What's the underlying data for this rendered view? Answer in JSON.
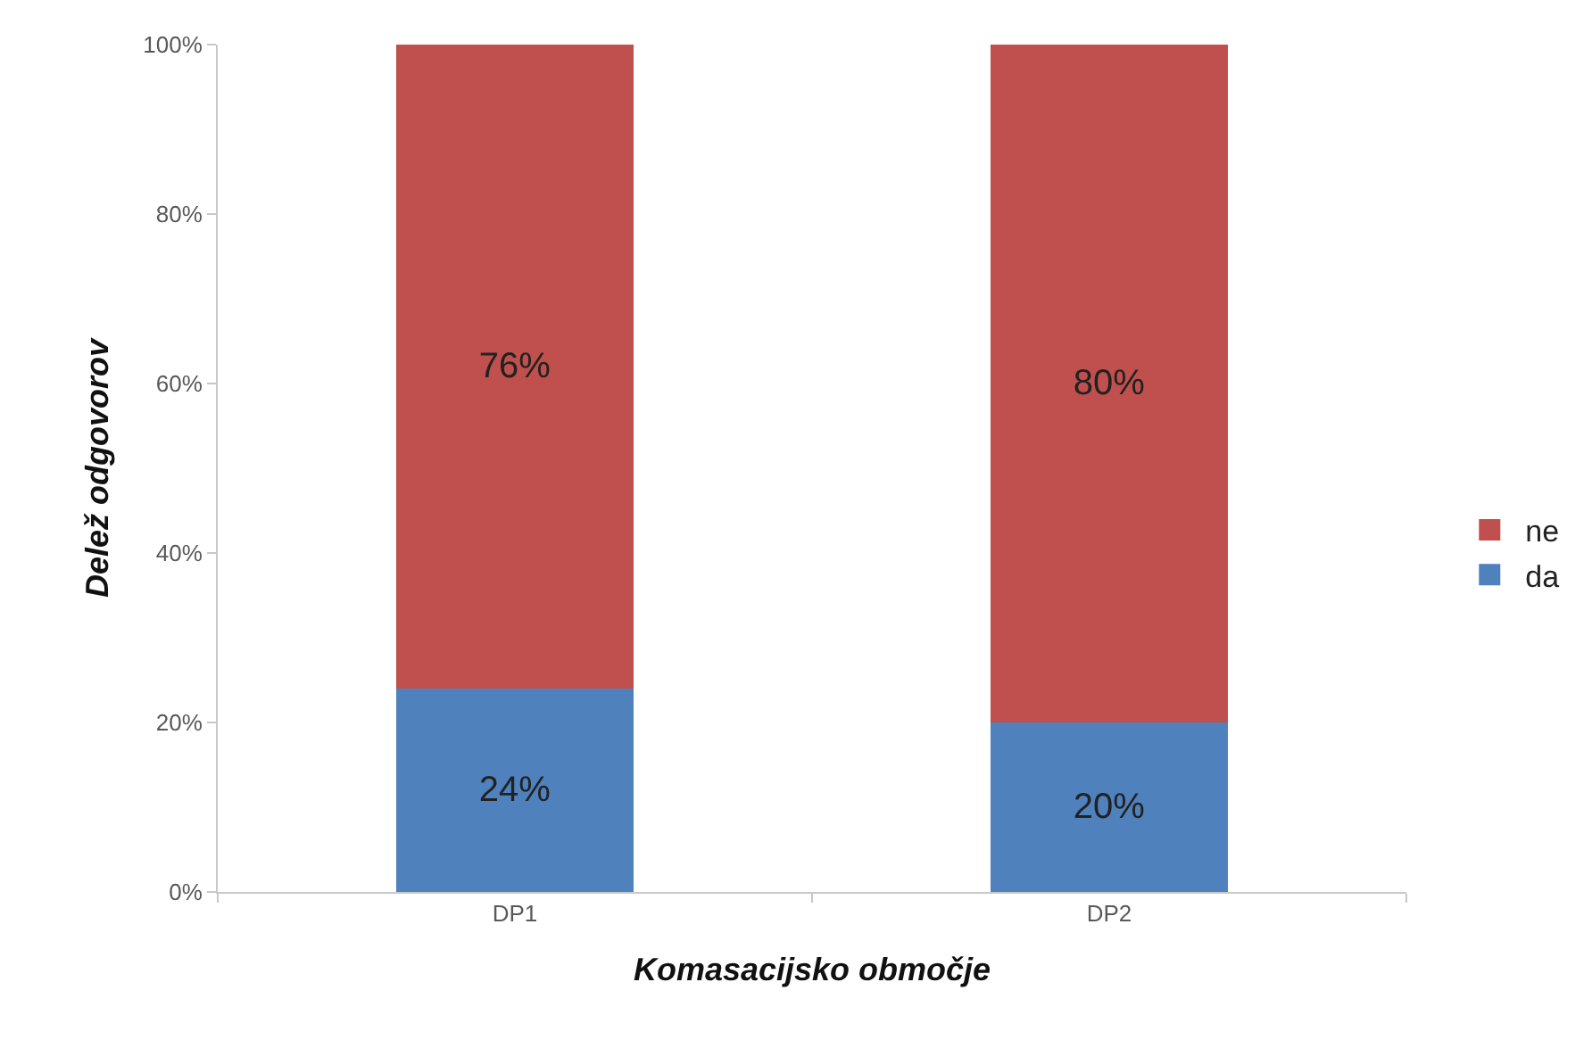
{
  "chart_data": {
    "type": "bar",
    "stacked": true,
    "xlabel": "Komasacijsko območje",
    "ylabel": "Delež odgovorov",
    "categories": [
      "DP1",
      "DP2"
    ],
    "series": [
      {
        "name": "da",
        "color": "#4f81bd",
        "values": [
          24,
          20
        ],
        "value_labels": [
          "24%",
          "20%"
        ]
      },
      {
        "name": "ne",
        "color": "#c0504d",
        "values": [
          76,
          80
        ],
        "value_labels": [
          "76%",
          "80%"
        ]
      }
    ],
    "ylim": [
      0,
      100
    ],
    "yticks": [
      {
        "value": 0,
        "label": "0%"
      },
      {
        "value": 20,
        "label": "20%"
      },
      {
        "value": 40,
        "label": "40%"
      },
      {
        "value": 60,
        "label": "60%"
      },
      {
        "value": 80,
        "label": "80%"
      },
      {
        "value": 100,
        "label": "100%"
      }
    ],
    "legend": "right"
  }
}
